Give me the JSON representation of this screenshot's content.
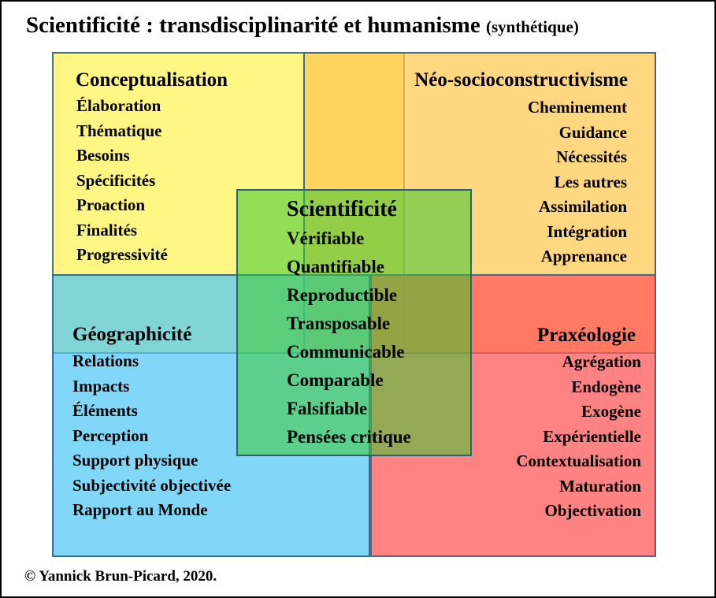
{
  "title": "Scientificité : transdisciplinarité et humanisme",
  "title_sub": "(synthétique)",
  "copyright": "© Yannick Brun-Picard, 2020.",
  "colors": {
    "yellow": "#FFF56E",
    "orange": "#FFC850",
    "blue": "#50C8F5",
    "red": "#FF5A5A",
    "green": "#3CC832",
    "border": "#3D6B91"
  },
  "quadrants": {
    "top_left": {
      "heading": "Conceptualisation",
      "items": [
        "Élaboration",
        "Thématique",
        "Besoins",
        "Spécificités",
        "Proaction",
        "Finalités",
        "Progressivité"
      ]
    },
    "top_right": {
      "heading": "Néo-socioconstructivisme",
      "items": [
        "Cheminement",
        "Guidance",
        "Nécessités",
        "Les autres",
        "Assimilation",
        "Intégration",
        "Apprenance"
      ]
    },
    "bottom_left": {
      "heading": "Géographicité",
      "items": [
        "Relations",
        "Impacts",
        "Éléments",
        "Perception",
        "Support physique",
        "Subjectivité objectivée",
        "Rapport au Monde"
      ]
    },
    "bottom_right": {
      "heading": "Praxéologie",
      "items": [
        "Agrégation",
        "Endogène",
        "Exogène",
        "Expérientielle",
        "Contextualisation",
        "Maturation",
        "Objectivation"
      ]
    },
    "center": {
      "heading": "Scientificité",
      "items": [
        "Vérifiable",
        "Quantifiable",
        "Reproductible",
        "Transposable",
        "Communicable",
        "Comparable",
        "Falsifiable",
        "Pensées critique"
      ]
    }
  }
}
